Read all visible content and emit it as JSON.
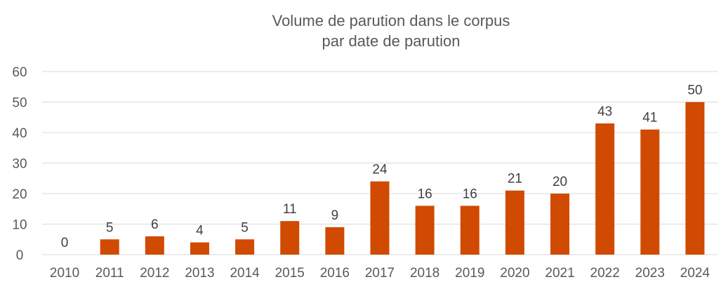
{
  "chart_data": {
    "type": "bar",
    "title": [
      "Volume de parution dans le corpus",
      "par date de parution"
    ],
    "xlabel": "",
    "ylabel": "",
    "categories": [
      "2010",
      "2011",
      "2012",
      "2013",
      "2014",
      "2015",
      "2016",
      "2017",
      "2018",
      "2019",
      "2020",
      "2021",
      "2022",
      "2023",
      "2024"
    ],
    "values": [
      0,
      5,
      6,
      4,
      5,
      11,
      9,
      24,
      16,
      16,
      21,
      20,
      43,
      41,
      50
    ],
    "data_labels": [
      "0",
      "5",
      "6",
      "4",
      "5",
      "11",
      "9",
      "24",
      "16",
      "16",
      "21",
      "20",
      "43",
      "41",
      "50"
    ],
    "yticks": [
      "0",
      "10",
      "20",
      "30",
      "40",
      "50",
      "60"
    ],
    "ylim": [
      0,
      60
    ],
    "grid": true,
    "legend": "none",
    "colors": {
      "bar": "#D04A02",
      "grid": "#D9D9D9",
      "text": "#595959"
    }
  }
}
